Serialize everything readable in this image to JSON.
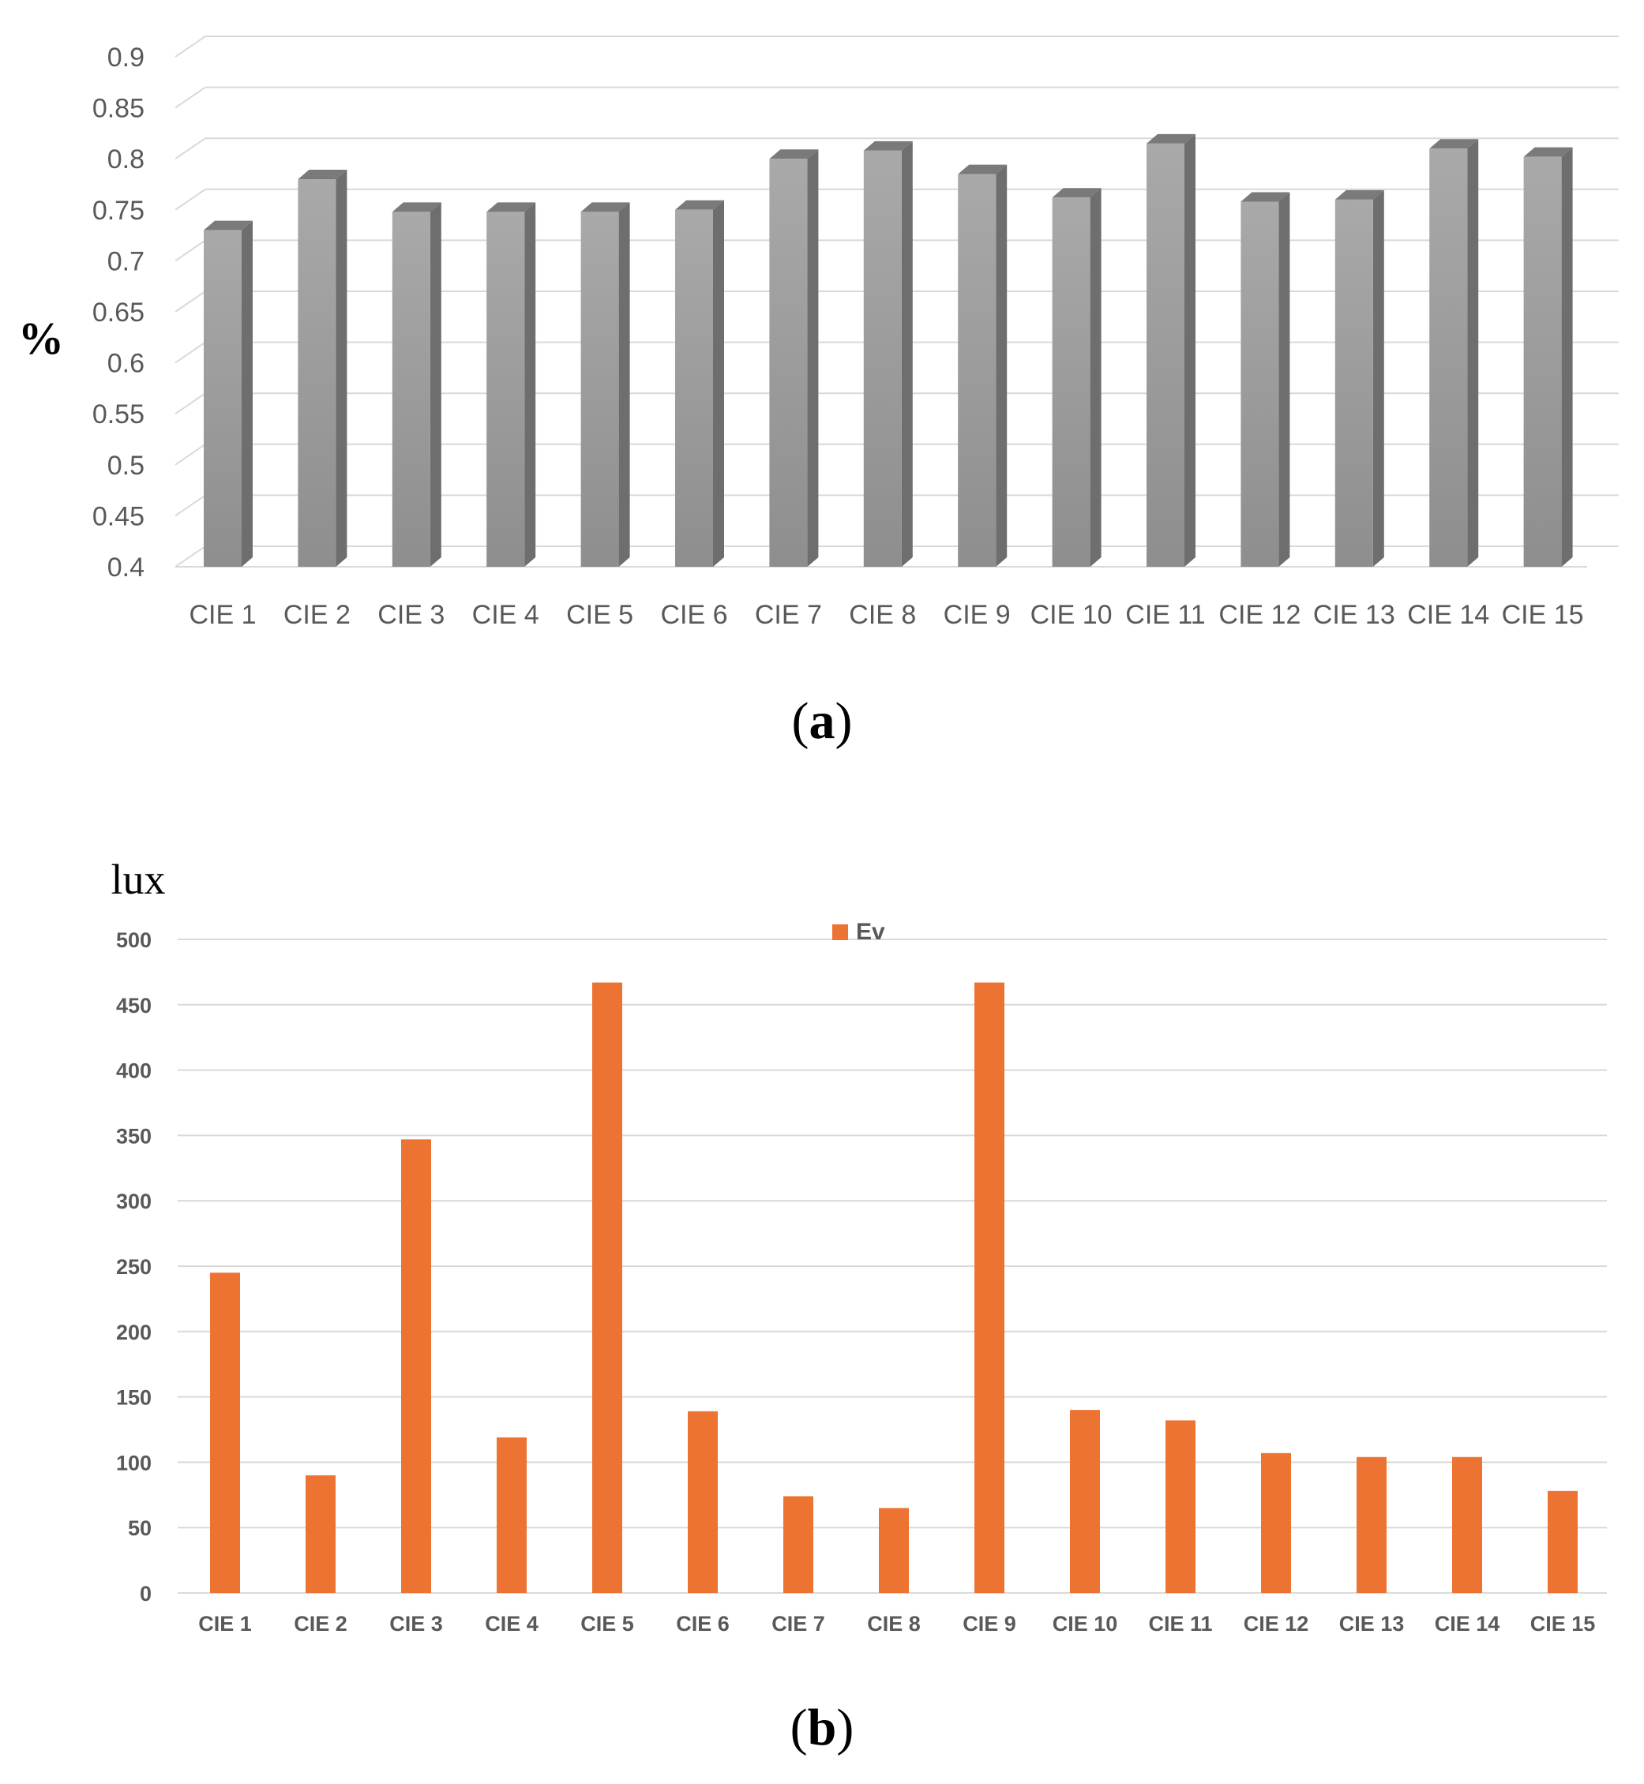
{
  "chart_data": [
    {
      "type": "bar",
      "panel_label": "(a)",
      "ylabel": "%",
      "categories": [
        "CIE 1",
        "CIE 2",
        "CIE 3",
        "CIE 4",
        "CIE 5",
        "CIE 6",
        "CIE 7",
        "CIE 8",
        "CIE 9",
        "CIE 10",
        "CIE 11",
        "CIE 12",
        "CIE 13",
        "CIE 14",
        "CIE 15"
      ],
      "values": [
        0.73,
        0.78,
        0.748,
        0.748,
        0.748,
        0.75,
        0.8,
        0.808,
        0.785,
        0.762,
        0.815,
        0.758,
        0.76,
        0.81,
        0.802
      ],
      "ylim": [
        0.4,
        0.9
      ],
      "yticks": [
        "0.4",
        "0.45",
        "0.5",
        "0.55",
        "0.6",
        "0.65",
        "0.7",
        "0.75",
        "0.8",
        "0.85",
        "0.9"
      ],
      "grid": true,
      "bar_color": "#a6a6a6"
    },
    {
      "type": "bar",
      "panel_label": "(b)",
      "ylabel": "lux",
      "series": [
        {
          "name": "Ev",
          "values": [
            245,
            90,
            347,
            119,
            467,
            139,
            74,
            65,
            467,
            140,
            132,
            107,
            104,
            104,
            78
          ]
        }
      ],
      "categories": [
        "CIE 1",
        "CIE 2",
        "CIE 3",
        "CIE 4",
        "CIE 5",
        "CIE 6",
        "CIE 7",
        "CIE 8",
        "CIE 9",
        "CIE 10",
        "CIE 11",
        "CIE 12",
        "CIE 13",
        "CIE 14",
        "CIE 15"
      ],
      "ylim": [
        0,
        500
      ],
      "yticks": [
        "0",
        "50",
        "100",
        "150",
        "200",
        "250",
        "300",
        "350",
        "400",
        "450",
        "500"
      ],
      "grid": true,
      "legend": "top-center",
      "bar_color": "#ec7332"
    }
  ]
}
